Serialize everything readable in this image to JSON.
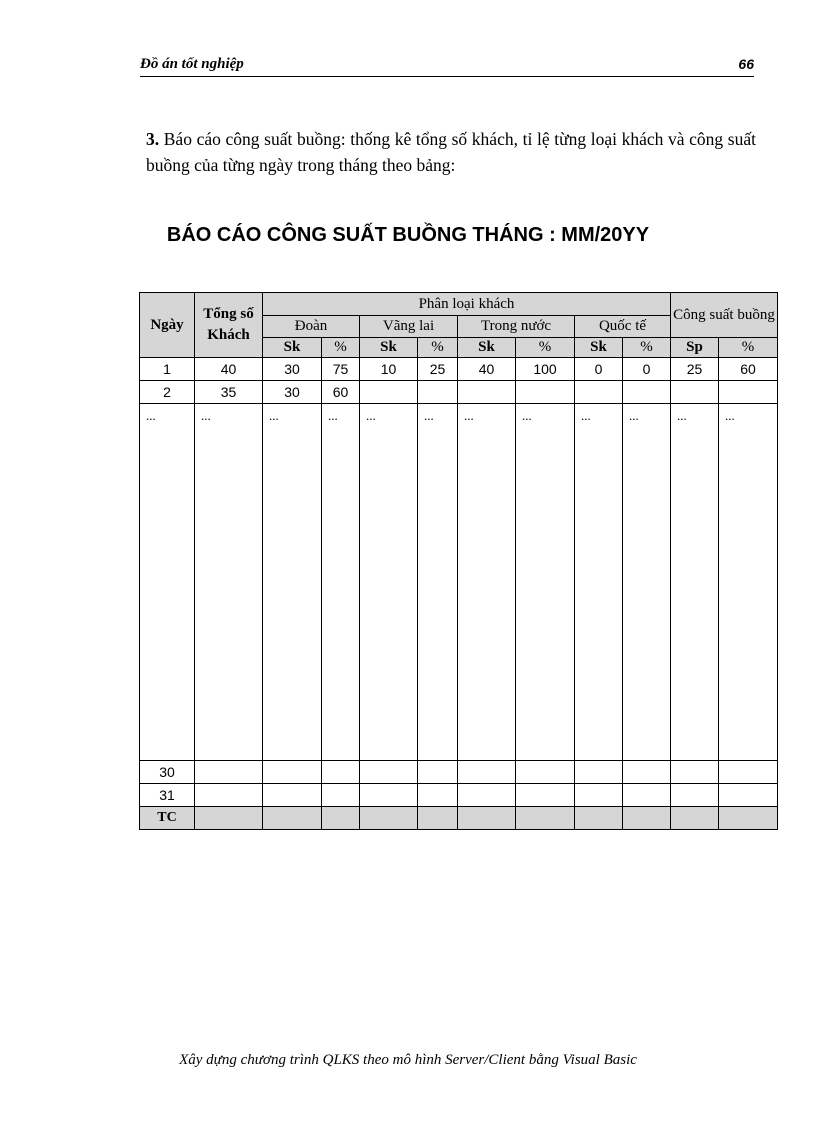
{
  "header": {
    "title": "Đồ án tốt nghiệp",
    "page_number": "66"
  },
  "intro": {
    "number": "3.",
    "text": " Báo cáo công suất buồng: thống kê tổng số khách, tỉ lệ từng loại khách và công suất buồng của từng ngày trong tháng theo bảng:"
  },
  "report_title": "BÁO CÁO CÔNG SUẤT BUỒNG THÁNG : MM/20YY",
  "table": {
    "headers": {
      "ngay": "Ngày",
      "tong": "Tổng số Khách",
      "phan_loai": "Phân loại khách",
      "cong_suat": "Công suất buồng",
      "doan": "Đoàn",
      "vang_lai": "Vãng lai",
      "trong_nuoc": "Trong nước",
      "quoc_te": "Quốc tế",
      "sk": "Sk",
      "pct": "%",
      "sp": "Sp"
    },
    "rows": [
      [
        "1",
        "40",
        "30",
        "75",
        "10",
        "25",
        "40",
        "100",
        "0",
        "0",
        "25",
        "60"
      ],
      [
        "2",
        "35",
        "30",
        "60",
        "",
        "",
        "",
        "",
        "",
        "",
        "",
        ""
      ],
      [
        "...",
        "...",
        "...",
        "...",
        "...",
        "...",
        "...",
        "...",
        "...",
        "...",
        "...",
        "..."
      ],
      [
        "30",
        "",
        "",
        "",
        "",
        "",
        "",
        "",
        "",
        "",
        "",
        ""
      ],
      [
        "31",
        "",
        "",
        "",
        "",
        "",
        "",
        "",
        "",
        "",
        "",
        ""
      ],
      [
        "TC",
        "",
        "",
        "",
        "",
        "",
        "",
        "",
        "",
        "",
        "",
        ""
      ]
    ]
  },
  "footer": "Xây dựng chương trình QLKS theo mô hình Server/Client bằng Visual Basic"
}
